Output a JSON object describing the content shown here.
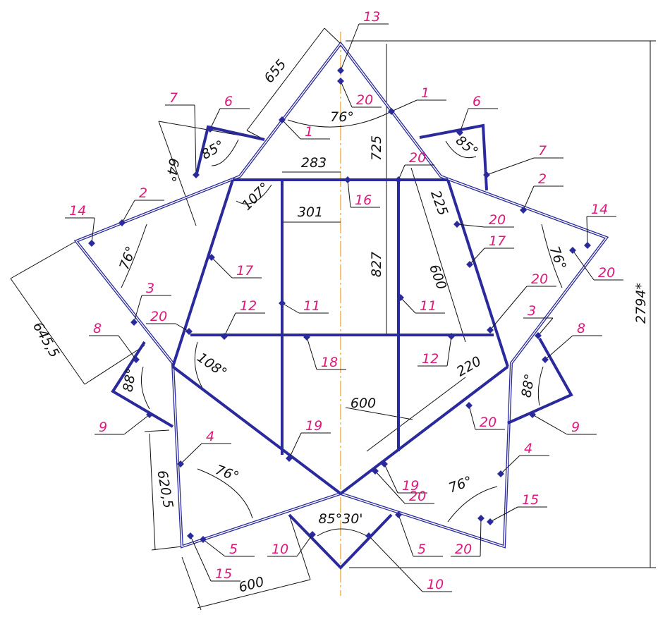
{
  "callouts": [
    "13",
    "20",
    "1",
    "1",
    "7",
    "6",
    "6",
    "7",
    "20",
    "16",
    "2",
    "2",
    "14",
    "14",
    "20",
    "17",
    "17",
    "20",
    "20",
    "3",
    "3",
    "20",
    "12",
    "11",
    "11",
    "12",
    "18",
    "8",
    "8",
    "9",
    "9",
    "20",
    "4",
    "4",
    "19",
    "19",
    "20",
    "15",
    "5",
    "10",
    "10",
    "5",
    "20",
    "15"
  ],
  "dimensions": [
    "655",
    "76°",
    "725",
    "85°",
    "85°",
    "64°",
    "283",
    "107°",
    "225",
    "301",
    "76°",
    "76°",
    "827",
    "600",
    "2794*",
    "645,5",
    "108°",
    "220",
    "600",
    "88°",
    "88°",
    "620,5",
    "76°",
    "76°",
    "85°30'",
    "600"
  ]
}
